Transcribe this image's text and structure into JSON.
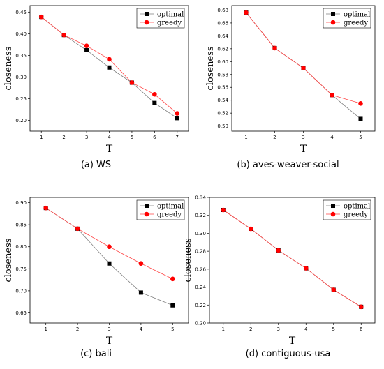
{
  "colors": {
    "optimal_marker": "#000000",
    "greedy_marker": "#ff0000",
    "optimal_line": "#7f7f7f",
    "greedy_line": "#ff4444",
    "axis": "#000000"
  },
  "chart_data": [
    {
      "type": "line",
      "caption": "(a) WS",
      "xlabel": "T",
      "ylabel": "closeness",
      "x": [
        1,
        2,
        3,
        4,
        5,
        6,
        7
      ],
      "xlim": [
        0.5,
        7.5
      ],
      "ylim": [
        0.175,
        0.465
      ],
      "yticks": [
        "0.20",
        "0.25",
        "0.30",
        "0.35",
        "0.40",
        "0.45"
      ],
      "series": [
        {
          "name": "optimal",
          "marker": "square",
          "values": [
            0.439,
            0.397,
            0.362,
            0.322,
            0.287,
            0.24,
            0.205
          ]
        },
        {
          "name": "greedy",
          "marker": "circle",
          "values": [
            0.439,
            0.397,
            0.372,
            0.341,
            0.287,
            0.26,
            0.216
          ]
        }
      ],
      "legend": "top-right",
      "grid": false
    },
    {
      "type": "line",
      "caption": "(b) aves-weaver-social",
      "xlabel": "T",
      "ylabel": "closeness",
      "x": [
        1,
        2,
        3,
        4,
        5
      ],
      "xlim": [
        0.5,
        5.5
      ],
      "ylim": [
        0.492,
        0.687
      ],
      "yticks": [
        "0.50",
        "0.52",
        "0.54",
        "0.56",
        "0.58",
        "0.60",
        "0.62",
        "0.64",
        "0.66",
        "0.68"
      ],
      "series": [
        {
          "name": "optimal",
          "marker": "square",
          "values": [
            0.676,
            0.621,
            0.59,
            0.548,
            0.511
          ]
        },
        {
          "name": "greedy",
          "marker": "circle",
          "values": [
            0.676,
            0.621,
            0.59,
            0.548,
            0.535
          ]
        }
      ],
      "legend": "top-right",
      "grid": false
    },
    {
      "type": "line",
      "caption": "(c) bali",
      "xlabel": "T",
      "ylabel": "closeness",
      "x": [
        1,
        2,
        3,
        4,
        5
      ],
      "xlim": [
        0.5,
        5.5
      ],
      "ylim": [
        0.627,
        0.912
      ],
      "yticks": [
        "0.65",
        "0.70",
        "0.75",
        "0.80",
        "0.85",
        "0.90"
      ],
      "series": [
        {
          "name": "optimal",
          "marker": "square",
          "values": [
            0.888,
            0.841,
            0.762,
            0.696,
            0.667
          ]
        },
        {
          "name": "greedy",
          "marker": "circle",
          "values": [
            0.888,
            0.841,
            0.8,
            0.762,
            0.727
          ]
        }
      ],
      "legend": "top-right",
      "grid": false
    },
    {
      "type": "line",
      "caption": "(d) contiguous-usa",
      "xlabel": "T",
      "ylabel": "closeness",
      "x": [
        1,
        2,
        3,
        4,
        5,
        6
      ],
      "xlim": [
        0.5,
        6.5
      ],
      "ylim": [
        0.2,
        0.34
      ],
      "yticks": [
        "0.20",
        "0.22",
        "0.24",
        "0.26",
        "0.28",
        "0.30",
        "0.32",
        "0.34"
      ],
      "series": [
        {
          "name": "optimal",
          "marker": "square",
          "values": [
            0.326,
            0.305,
            0.281,
            0.261,
            0.237,
            0.218
          ]
        },
        {
          "name": "greedy",
          "marker": "circle",
          "values": [
            0.326,
            0.305,
            0.281,
            0.261,
            0.237,
            0.218
          ]
        }
      ],
      "legend": "top-right",
      "grid": false
    }
  ]
}
